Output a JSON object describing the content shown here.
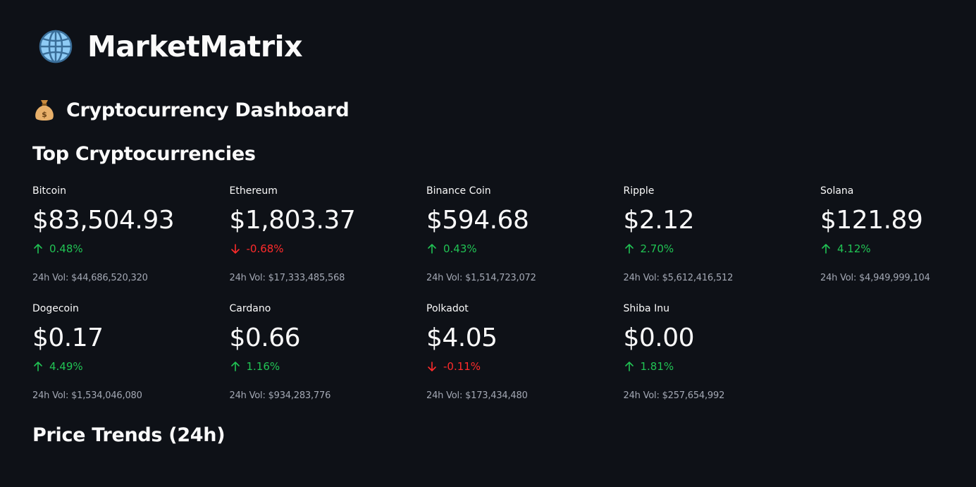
{
  "brand": {
    "icon": "globe-icon",
    "title": "MarketMatrix"
  },
  "dashboard": {
    "icon": "money-bag-icon",
    "title": "Cryptocurrency Dashboard"
  },
  "top_section": {
    "title": "Top Cryptocurrencies"
  },
  "trends_section": {
    "title": "Price Trends (24h)"
  },
  "colors": {
    "background": "#0e1117",
    "text": "#fafafa",
    "positive": "#21c354",
    "negative": "#ff2b2b",
    "muted": "#a3a8b4",
    "globe": "#8ecbf5"
  },
  "coins": [
    {
      "name": "Bitcoin",
      "price": "$83,504.93",
      "change": "0.48%",
      "direction": "up",
      "volume": "24h Vol: $44,686,520,320"
    },
    {
      "name": "Ethereum",
      "price": "$1,803.37",
      "change": "-0.68%",
      "direction": "down",
      "volume": "24h Vol: $17,333,485,568"
    },
    {
      "name": "Binance Coin",
      "price": "$594.68",
      "change": "0.43%",
      "direction": "up",
      "volume": "24h Vol: $1,514,723,072"
    },
    {
      "name": "Ripple",
      "price": "$2.12",
      "change": "2.70%",
      "direction": "up",
      "volume": "24h Vol: $5,612,416,512"
    },
    {
      "name": "Solana",
      "price": "$121.89",
      "change": "4.12%",
      "direction": "up",
      "volume": "24h Vol: $4,949,999,104"
    },
    {
      "name": "Dogecoin",
      "price": "$0.17",
      "change": "4.49%",
      "direction": "up",
      "volume": "24h Vol: $1,534,046,080"
    },
    {
      "name": "Cardano",
      "price": "$0.66",
      "change": "1.16%",
      "direction": "up",
      "volume": "24h Vol: $934,283,776"
    },
    {
      "name": "Polkadot",
      "price": "$4.05",
      "change": "-0.11%",
      "direction": "down",
      "volume": "24h Vol: $173,434,480"
    },
    {
      "name": "Shiba Inu",
      "price": "$0.00",
      "change": "1.81%",
      "direction": "up",
      "volume": "24h Vol: $257,654,992"
    }
  ]
}
